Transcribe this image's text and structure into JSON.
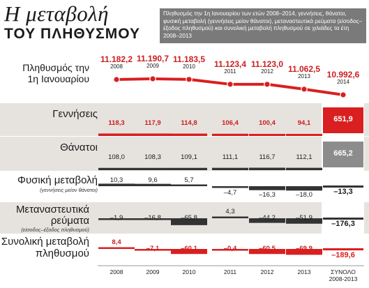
{
  "title_italic": "Η μεταβολή",
  "title_caps": "ΤΟΥ ΠΛΗΘΥΣΜΟΥ",
  "description": "Πληθυσμός την 1η Ιανουαρίου των ετών 2008–2014, γεννήσεις, θάνατοι, φυσική μεταβολή (γεννήσεις μείον θάνατοι), μεταναστευτικά ρεύματα (είσοδος–έξοδος πληθυσμού) και συνολική μεταβολή πληθυσμού σε χιλιάδες τα έτη 2008–2013",
  "population_label_1": "Πληθυσμός την",
  "population_label_2": "1η Ιανουαρίου",
  "colors": {
    "red": "#d91f1f",
    "gray_band": "#e6e3df",
    "dark_bar": "#3a3a3a",
    "total_gray": "#8c8c8c"
  },
  "chart_data": {
    "type": "line+bar-table",
    "unit": "thousands",
    "population": {
      "years": [
        "2008",
        "2009",
        "2010",
        "2011",
        "2012",
        "2013",
        "2014"
      ],
      "labels": [
        "11.182,2",
        "11.190,7",
        "11.183,5",
        "11.123,4",
        "11.123,0",
        "11.062,5",
        "10.992,6"
      ],
      "values": [
        11182.2,
        11190.7,
        11183.5,
        11123.4,
        11123.0,
        11062.5,
        10992.6
      ]
    },
    "year_axis": [
      "2008",
      "2009",
      "2010",
      "2011",
      "2012",
      "2013"
    ],
    "total_axis_1": "ΣΥΝΟΛΟ",
    "total_axis_2": "2008-2013",
    "rows": [
      {
        "label": "Γεννήσεις",
        "sub": "",
        "values": [
          118.3,
          117.9,
          114.8,
          106.4,
          100.4,
          94.1
        ],
        "labels": [
          "118,3",
          "117,9",
          "114,8",
          "106,4",
          "100,4",
          "94,1"
        ],
        "total": 651.9,
        "total_label": "651,9"
      },
      {
        "label": "Θάνατοι",
        "sub": "",
        "values": [
          108.0,
          108.3,
          109.1,
          111.1,
          116.7,
          112.1
        ],
        "labels": [
          "108,0",
          "108,3",
          "109,1",
          "111,1",
          "116,7",
          "112,1"
        ],
        "total": 665.2,
        "total_label": "665,2"
      },
      {
        "label": "Φυσική μεταβολή",
        "sub": "(γεννήσεις μείον θάνατοι)",
        "values": [
          10.3,
          9.6,
          5.7,
          -4.7,
          -16.3,
          -18.0
        ],
        "labels": [
          "10,3",
          "9,6",
          "5,7",
          "–4,7",
          "–16,3",
          "–18,0"
        ],
        "total": -13.3,
        "total_label": "–13,3"
      },
      {
        "label": "Μεταναστευτικά ρεύματα",
        "sub": "(είσοδος–έξοδος πληθυσμού)",
        "values": [
          -1.9,
          -16.8,
          -65.8,
          4.3,
          -44.2,
          -51.9
        ],
        "labels": [
          "–1,9",
          "–16,8",
          "–65,8",
          "4,3",
          "–44,2",
          "–51,9"
        ],
        "total": -176.3,
        "total_label": "–176,3"
      },
      {
        "label": "Συνολική μεταβολή πληθυσμού",
        "sub": "",
        "values": [
          8.4,
          -7.1,
          -60.1,
          -0.4,
          -60.5,
          -69.9
        ],
        "labels": [
          "8,4",
          "–7,1",
          "–60,1",
          "–0,4",
          "–60,5",
          "–69,9"
        ],
        "total": -189.6,
        "total_label": "–189,6"
      }
    ]
  }
}
